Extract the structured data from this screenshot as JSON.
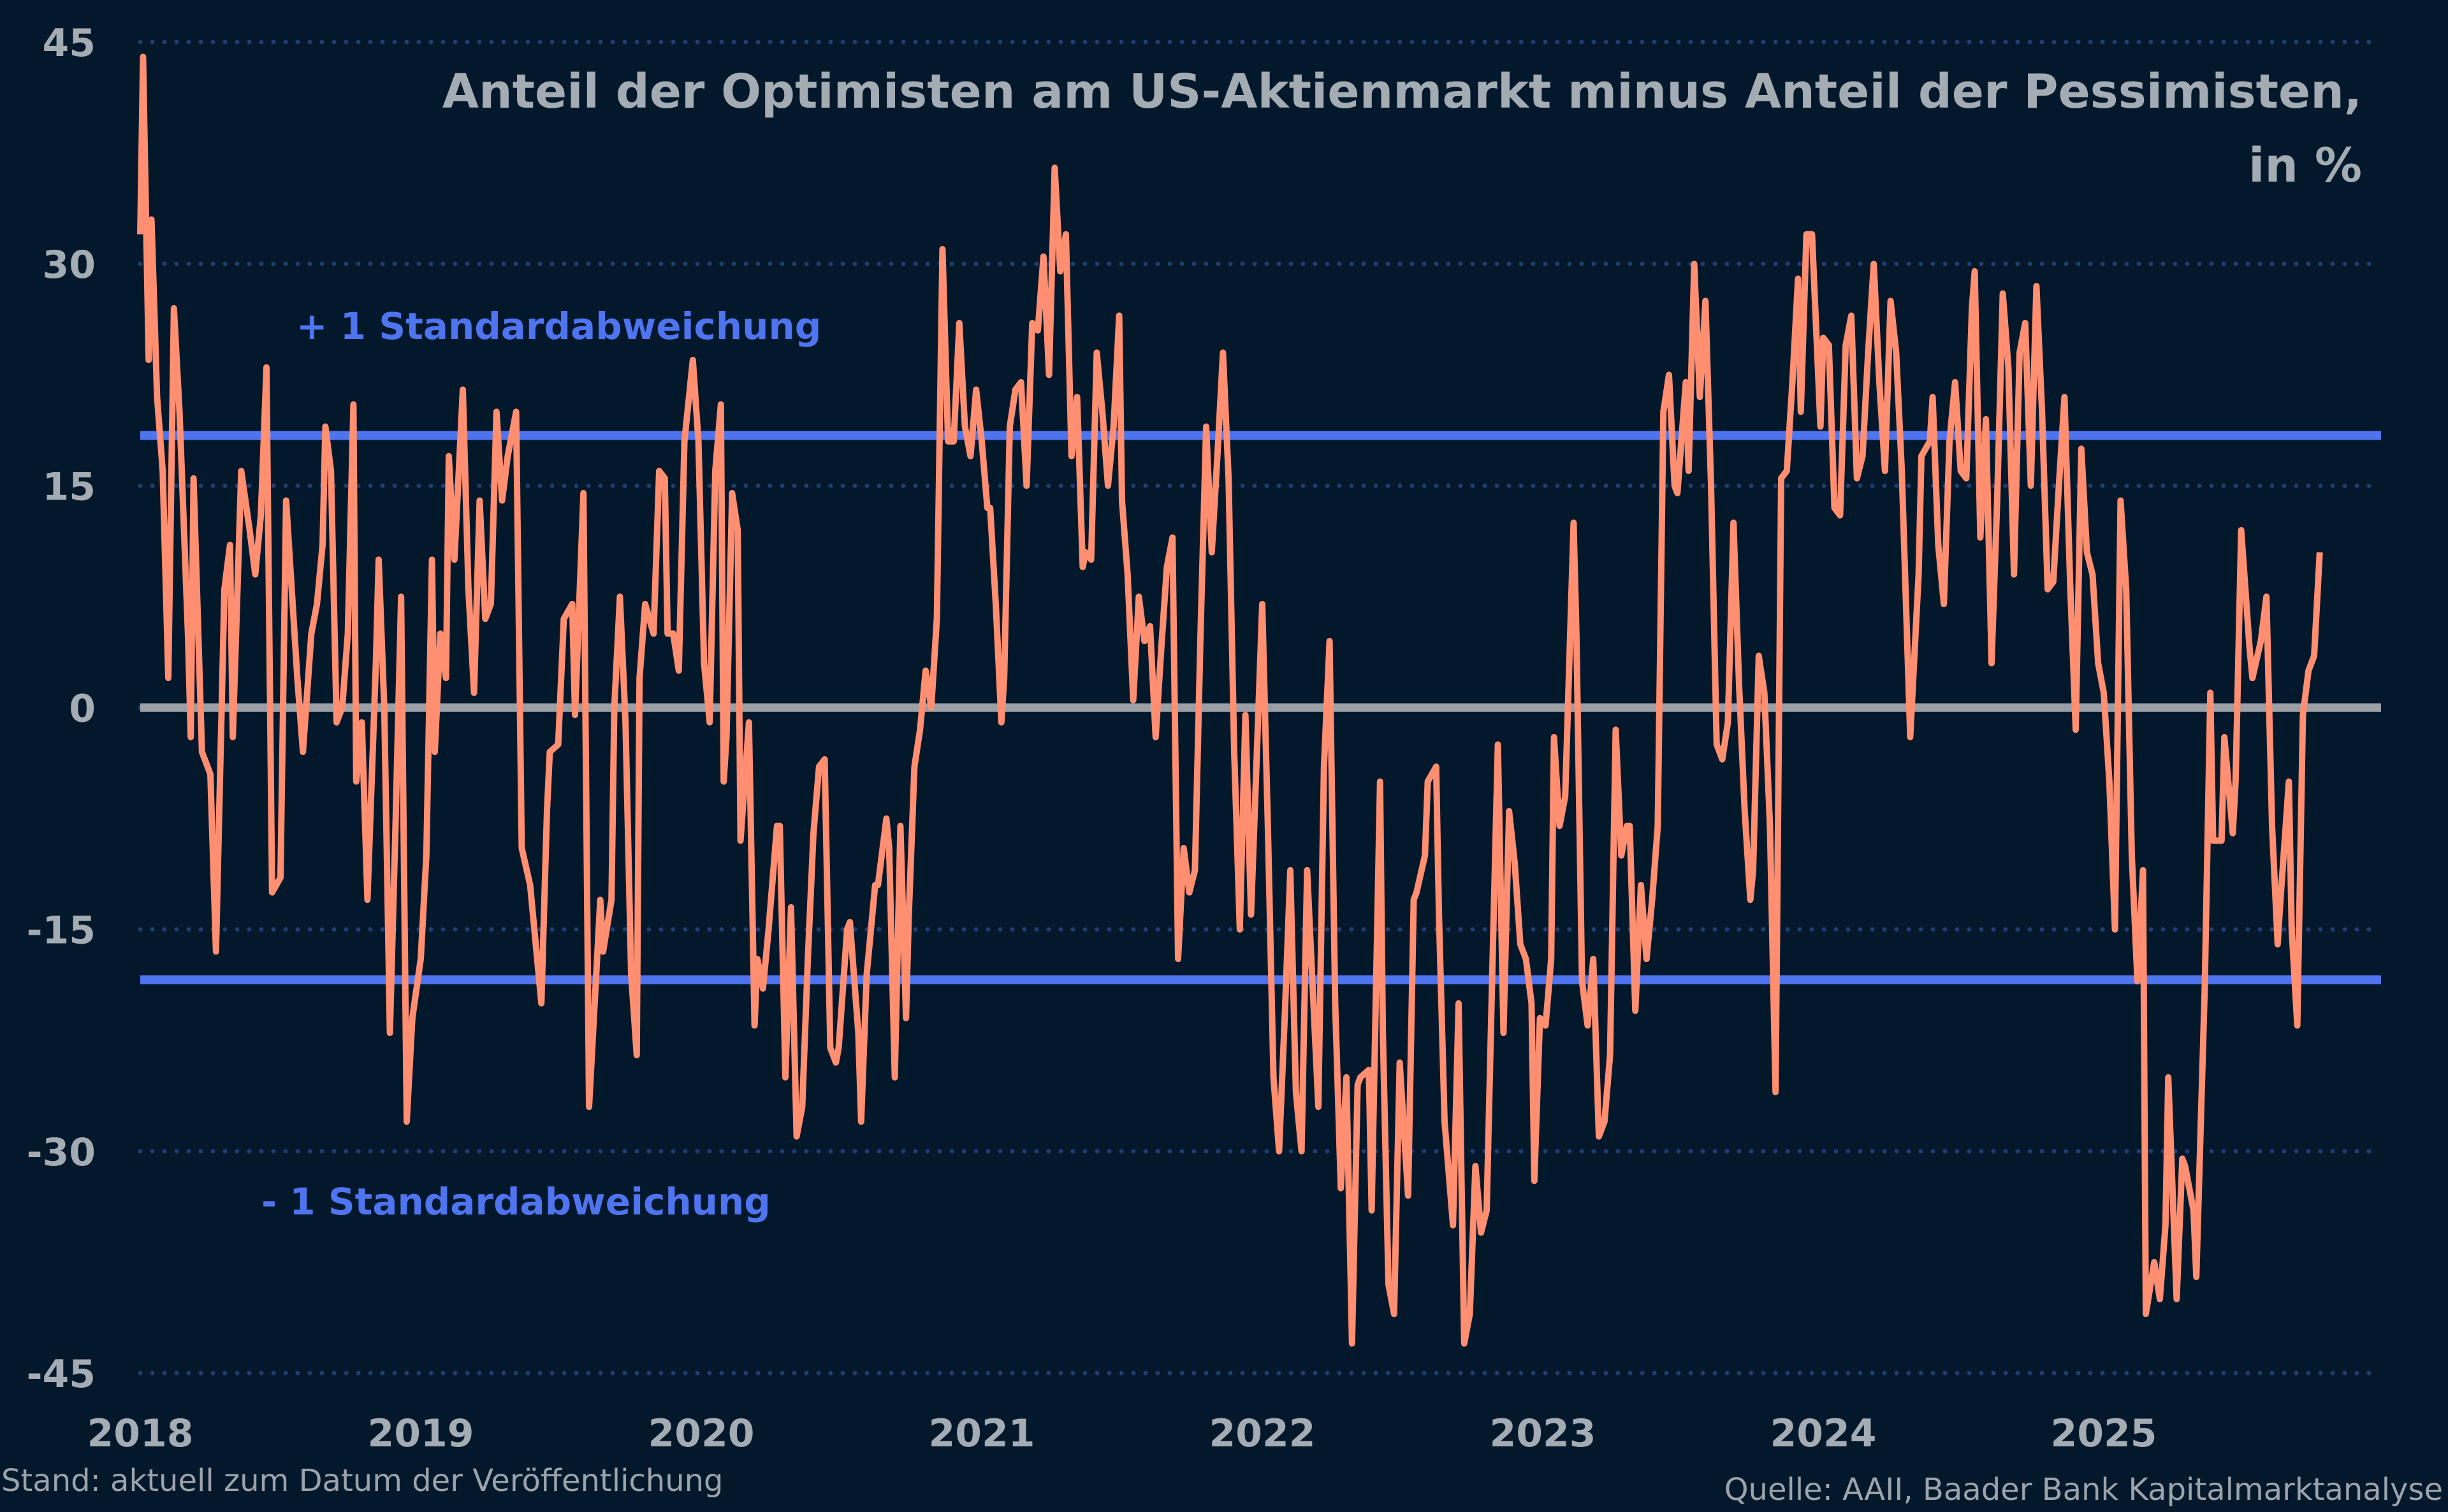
{
  "chart_data": {
    "type": "line",
    "title": "Anteil der Optimisten am US-Aktienmarkt minus Anteil der Pessimisten,",
    "title_line2": "in %",
    "xlabel": "",
    "ylabel": "",
    "ylim": [
      -45,
      45
    ],
    "yticks": [
      45,
      30,
      15,
      0,
      -15,
      -30,
      -45
    ],
    "xlim": [
      2018,
      2025.85
    ],
    "xticks": [
      "2018",
      "2019",
      "2020",
      "2021",
      "2022",
      "2023",
      "2024",
      "2025"
    ],
    "grid": "horizontal dotted",
    "colors": {
      "background": "#04182c",
      "series": "#ff8f70",
      "std_lines": "#4f74f0",
      "zero_line": "#9aa0a6",
      "grid": "#1f3d70",
      "text": "#a3abb3"
    },
    "reference_lines": [
      {
        "label": "+ 1 Standardabweichung",
        "value": 18.4
      },
      {
        "label": "- 1 Standardabweichung",
        "value": -18.4
      },
      {
        "label": "",
        "value": 0
      }
    ],
    "series": [
      {
        "x": [
          2018.0,
          2018.01,
          2018.03,
          2018.04,
          2018.06,
          2018.08,
          2018.1,
          2018.12,
          2018.14,
          2018.17,
          2018.18,
          2018.19,
          2018.22,
          2018.25,
          2018.27,
          2018.3,
          2018.32,
          2018.33,
          2018.36,
          2018.39,
          2018.41,
          2018.43,
          2018.45,
          2018.47,
          2018.5,
          2018.52,
          2018.54,
          2018.56,
          2018.58,
          2018.61,
          2018.63,
          2018.65,
          2018.66,
          2018.68,
          2018.7,
          2018.72,
          2018.74,
          2018.76,
          2018.77,
          2018.79,
          2018.81,
          2018.84,
          2018.85,
          2018.87,
          2018.89,
          2018.91,
          2018.93,
          2018.95,
          2018.97,
          2019.0,
          2019.02,
          2019.04,
          2019.05,
          2019.07,
          2019.09,
          2019.1,
          2019.12,
          2019.15,
          2019.17,
          2019.19,
          2019.21,
          2019.23,
          2019.25,
          2019.27,
          2019.29,
          2019.31,
          2019.34,
          2019.36,
          2019.39,
          2019.41,
          2019.43,
          2019.45,
          2019.46,
          2019.49,
          2019.51,
          2019.54,
          2019.55,
          2019.58,
          2019.6,
          2019.62,
          2019.64,
          2019.65,
          2019.68,
          2019.69,
          2019.71,
          2019.73,
          2019.75,
          2019.77,
          2019.78,
          2019.8,
          2019.83,
          2019.85,
          2019.87,
          2019.88,
          2019.9,
          2019.92,
          2019.94,
          2019.97,
          2019.99,
          2020.01,
          2020.03,
          2020.05,
          2020.07,
          2020.08,
          2020.09,
          2020.11,
          2020.13,
          2020.14,
          2020.17,
          2020.19,
          2020.2,
          2020.22,
          2020.24,
          2020.27,
          2020.28,
          2020.3,
          2020.32,
          2020.34,
          2020.36,
          2020.38,
          2020.4,
          2020.42,
          2020.44,
          2020.46,
          2020.48,
          2020.49,
          2020.52,
          2020.53,
          2020.56,
          2020.57,
          2020.59,
          2020.62,
          2020.63,
          2020.66,
          2020.67,
          2020.69,
          2020.71,
          2020.73,
          2020.74,
          2020.76,
          2020.78,
          2020.8,
          2020.82,
          2020.84,
          2020.86,
          2020.88,
          2020.9,
          2020.92,
          2020.94,
          2020.96,
          2020.98,
          2021.0,
          2021.02,
          2021.03,
          2021.05,
          2021.07,
          2021.08,
          2021.1,
          2021.12,
          2021.14,
          2021.16,
          2021.18,
          2021.2,
          2021.22,
          2021.24,
          2021.26,
          2021.28,
          2021.3,
          2021.32,
          2021.34,
          2021.36,
          2021.37,
          2021.39,
          2021.41,
          2021.43,
          2021.45,
          2021.47,
          2021.49,
          2021.5,
          2021.52,
          2021.54,
          2021.56,
          2021.58,
          2021.6,
          2021.62,
          2021.64,
          2021.66,
          2021.68,
          2021.7,
          2021.72,
          2021.74,
          2021.76,
          2021.78,
          2021.8,
          2021.82,
          2021.84,
          2021.86,
          2021.88,
          2021.9,
          2021.92,
          2021.94,
          2021.96,
          2021.98,
          2022.0,
          2022.02,
          2022.04,
          2022.06,
          2022.08,
          2022.1,
          2022.12,
          2022.14,
          2022.16,
          2022.18,
          2022.2,
          2022.22,
          2022.24,
          2022.26,
          2022.28,
          2022.3,
          2022.32,
          2022.34,
          2022.35,
          2022.38,
          2022.39,
          2022.42,
          2022.43,
          2022.45,
          2022.47,
          2022.49,
          2022.52,
          2022.54,
          2022.55,
          2022.58,
          2022.59,
          2022.62,
          2022.63,
          2022.65,
          2022.68,
          2022.7,
          2022.72,
          2022.74,
          2022.76,
          2022.78,
          2022.8,
          2022.82,
          2022.84,
          2022.86,
          2022.88,
          2022.9,
          2022.92,
          2022.94,
          2022.96,
          2022.97,
          2022.99,
          2023.01,
          2023.03,
          2023.04,
          2023.06,
          2023.08,
          2023.11,
          2023.12,
          2023.14,
          2023.16,
          2023.18,
          2023.2,
          2023.22,
          2023.24,
          2023.26,
          2023.28,
          2023.3,
          2023.31,
          2023.33,
          2023.35,
          2023.37,
          2023.39,
          2023.41,
          2023.43,
          2023.45,
          2023.47,
          2023.48,
          2023.51,
          2023.52,
          2023.54,
          2023.56,
          2023.58,
          2023.6,
          2023.62,
          2023.64,
          2023.66,
          2023.68,
          2023.7,
          2023.72,
          2023.74,
          2023.75,
          2023.77,
          2023.79,
          2023.81,
          2023.83,
          2023.85,
          2023.87,
          2023.89,
          2023.91,
          2023.92,
          2023.94,
          2023.96,
          2023.99,
          2024.0,
          2024.02,
          2024.04,
          2024.06,
          2024.08,
          2024.1,
          2024.12,
          2024.14,
          2024.16,
          2024.18,
          2024.2,
          2024.22,
          2024.24,
          2024.26,
          2024.28,
          2024.3,
          2024.31,
          2024.34,
          2024.35,
          2024.38,
          2024.39,
          2024.41,
          2024.43,
          2024.45,
          2024.47,
          2024.49,
          2024.51,
          2024.53,
          2024.54,
          2024.56,
          2024.58,
          2024.6,
          2024.62,
          2024.64,
          2024.66,
          2024.68,
          2024.7,
          2024.72,
          2024.74,
          2024.76,
          2024.78,
          2024.8,
          2024.82,
          2024.84,
          2024.86,
          2024.88,
          2024.9,
          2024.92,
          2024.94,
          2024.96,
          2024.98,
          2025.0,
          2025.02,
          2025.04,
          2025.06,
          2025.08,
          2025.1,
          2025.12,
          2025.14,
          2025.15,
          2025.18,
          2025.2,
          2025.22,
          2025.23,
          2025.26,
          2025.28,
          2025.29,
          2025.32,
          2025.33,
          2025.36,
          2025.38,
          2025.39,
          2025.42,
          2025.43,
          2025.46,
          2025.47,
          2025.49,
          2025.52,
          2025.53,
          2025.56,
          2025.58,
          2025.6,
          2025.62,
          2025.63,
          2025.66,
          2025.67,
          2025.69,
          2025.71,
          2025.73,
          2025.75,
          2025.77
        ],
        "y": [
          32,
          44,
          23.5,
          33,
          21,
          16,
          2,
          27,
          20,
          5,
          -2,
          15.5,
          -3,
          -4.5,
          -16.5,
          8,
          11,
          -2,
          16,
          12,
          9,
          13,
          23,
          -12.5,
          -11.5,
          14,
          8,
          2,
          -3,
          5,
          7,
          11,
          19,
          16,
          -1,
          0,
          5,
          20.5,
          -5,
          -1,
          -13,
          3,
          10,
          0,
          -22,
          -8,
          7.5,
          -28,
          -21,
          -17,
          -10,
          10,
          -3,
          5,
          2,
          17,
          10,
          21.5,
          8,
          1,
          14,
          6,
          7,
          20,
          14,
          17,
          20,
          -9.5,
          -12,
          -16,
          -20,
          -7,
          -3,
          -2.5,
          6,
          7,
          -0.5,
          14.5,
          -27,
          -20,
          -13,
          -16.5,
          -13,
          0,
          7.5,
          -1,
          -18,
          -23.5,
          2,
          7,
          5,
          16,
          15.5,
          5,
          5,
          2.5,
          18,
          23.5,
          18,
          3,
          -1,
          16,
          20.5,
          -5,
          -2,
          14.5,
          12,
          -9,
          -1,
          -21.5,
          -17,
          -19,
          -15,
          -8,
          -8,
          -25,
          -13.5,
          -29,
          -27,
          -17,
          -8.5,
          -4,
          -3.5,
          -23,
          -24,
          -23,
          -15,
          -14.5,
          -22,
          -28,
          -18,
          -12,
          -12,
          -7.5,
          -9.5,
          -25,
          -8,
          -21,
          -14,
          -4,
          -1.5,
          2.5,
          0,
          6,
          31,
          18,
          18,
          26,
          19,
          17,
          21.5,
          18,
          13.5,
          13.5,
          7,
          -1,
          2,
          19,
          21.5,
          22,
          15,
          26,
          25.5,
          30.5,
          22.5,
          36.5,
          29.5,
          32,
          17,
          21,
          9.5,
          10.5,
          10,
          24,
          20,
          15,
          19,
          26.5,
          14,
          9,
          0.5,
          7.5,
          4.5,
          5.5,
          -2,
          4,
          9.5,
          11.5,
          -17,
          -9.5,
          -12.5,
          -11,
          5,
          19,
          10.5,
          17,
          24,
          15.5,
          -3,
          -15,
          -0.5,
          -14,
          -3.5,
          7,
          -8,
          -25,
          -30,
          -21,
          -11,
          -26,
          -30,
          -11,
          -19,
          -27,
          -4,
          4.5,
          -20,
          -32.5,
          -25,
          -43,
          -25.5,
          -25,
          -24.5,
          -34,
          -5,
          -22,
          -39,
          -41,
          -24,
          -33,
          -13,
          -12.5,
          -10,
          -5,
          -4,
          -14,
          -28,
          -35,
          -20,
          -43,
          -41,
          -31,
          -35.5,
          -34,
          -18,
          -2.5,
          -22,
          -7,
          -10.5,
          -16,
          -17,
          -20,
          -32,
          -21,
          -21.5,
          -17,
          -2,
          -8,
          -6,
          12.5,
          5,
          -18.5,
          -21.5,
          -17,
          -29,
          -28,
          -23.5,
          -1.5,
          -10,
          -8,
          -8,
          -20.5,
          -12,
          -17,
          -13,
          -8,
          20,
          22.5,
          15,
          14.5,
          22,
          16,
          30,
          21,
          27.5,
          15,
          -2.5,
          -3.5,
          -1,
          12.5,
          1.5,
          -7,
          -13,
          -11,
          3.5,
          1,
          -8,
          -26,
          15.5,
          16,
          22,
          29,
          20,
          32,
          32,
          19,
          25,
          24.5,
          13.5,
          13,
          24.5,
          26.5,
          15.5,
          17,
          24,
          30,
          22,
          16,
          27.5,
          24,
          16,
          4,
          -2,
          9,
          17,
          18,
          21,
          11,
          7,
          18,
          22,
          16,
          15.5,
          27,
          29.5,
          11.5,
          19.5,
          3,
          14,
          28,
          23,
          9,
          24,
          26,
          15,
          28.5,
          20,
          8,
          8.5,
          15,
          21,
          8.5,
          -1.5,
          17.5,
          10.5,
          9,
          3,
          1,
          -5,
          -15,
          14,
          8,
          -10,
          -18.5,
          -11,
          -41,
          -37.5,
          -40,
          -35,
          -25,
          -40,
          -30.5,
          -31,
          -34,
          -38.5,
          -19,
          1,
          -9,
          -9,
          -2,
          -8.5,
          -5,
          12,
          4,
          2,
          4.5,
          7.5,
          -8,
          -16,
          -13,
          -5,
          -15,
          -21.5,
          -0.5,
          2.5,
          3.5,
          10.5
        ]
      }
    ]
  },
  "footer": {
    "left": "Stand: aktuell zum Datum der Veröffentlichung",
    "right": "Quelle: AAII, Baader Bank Kapitalmarktanalyse"
  }
}
